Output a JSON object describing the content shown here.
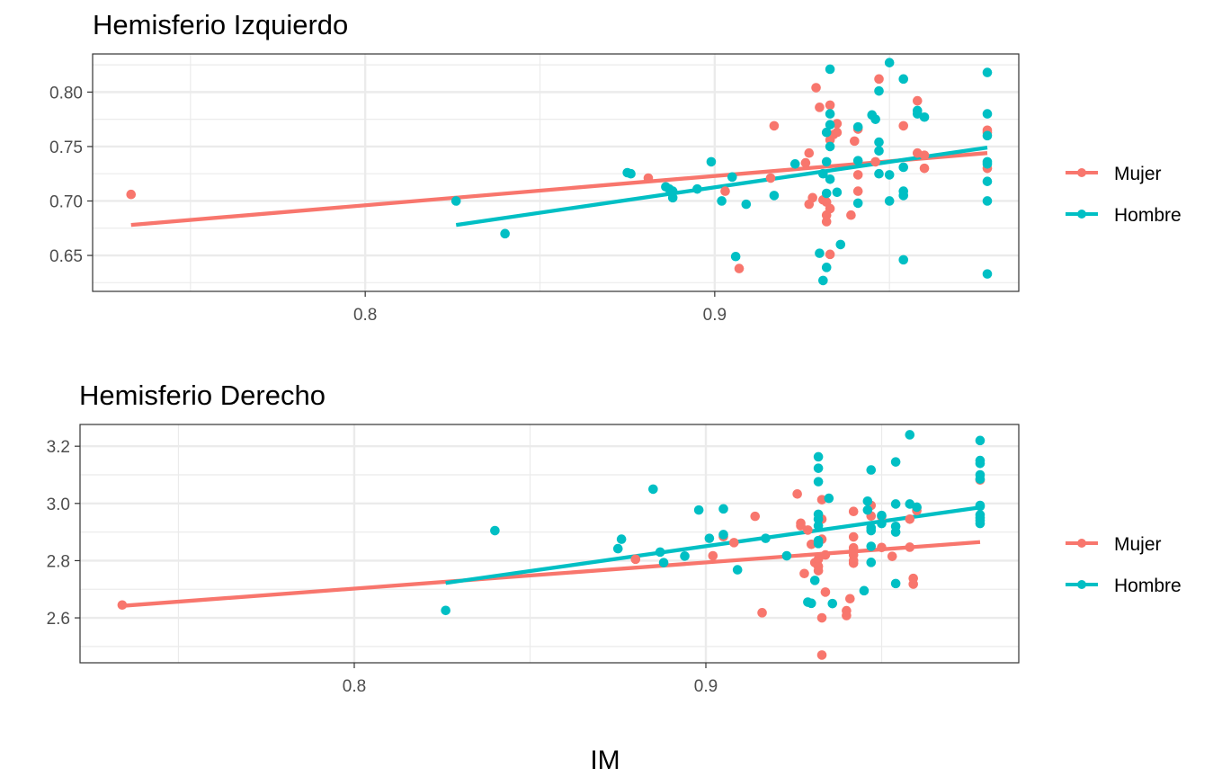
{
  "figure": {
    "xlabel": "IM"
  },
  "legend": {
    "items": [
      {
        "label": "Mujer",
        "color": "#F8766D"
      },
      {
        "label": "Hombre",
        "color": "#00BFC4"
      }
    ]
  },
  "chart_data": [
    {
      "type": "scatter",
      "title": "Hemisferio Izquierdo",
      "xlabel": "IM",
      "ylabel": "",
      "xlim": [
        0.722,
        0.987
      ],
      "ylim": [
        0.617,
        0.835
      ],
      "xticks": [
        "0.8",
        "0.9"
      ],
      "xtick_values": [
        0.8,
        0.9
      ],
      "yticks": [
        "0.65",
        "0.70",
        "0.75",
        "0.80"
      ],
      "ytick_values": [
        0.65,
        0.7,
        0.75,
        0.8
      ],
      "grid": true,
      "legend_position": "right",
      "series": [
        {
          "name": "Mujer",
          "color": "#F8766D",
          "points": [
            [
              0.733,
              0.706
            ],
            [
              0.881,
              0.721
            ],
            [
              0.903,
              0.709
            ],
            [
              0.907,
              0.638
            ],
            [
              0.916,
              0.721
            ],
            [
              0.917,
              0.769
            ],
            [
              0.926,
              0.735
            ],
            [
              0.927,
              0.744
            ],
            [
              0.927,
              0.697
            ],
            [
              0.928,
              0.703
            ],
            [
              0.929,
              0.804
            ],
            [
              0.93,
              0.786
            ],
            [
              0.931,
              0.701
            ],
            [
              0.932,
              0.699
            ],
            [
              0.932,
              0.681
            ],
            [
              0.932,
              0.687
            ],
            [
              0.933,
              0.693
            ],
            [
              0.933,
              0.788
            ],
            [
              0.933,
              0.651
            ],
            [
              0.933,
              0.756
            ],
            [
              0.934,
              0.761
            ],
            [
              0.935,
              0.771
            ],
            [
              0.935,
              0.763
            ],
            [
              0.939,
              0.687
            ],
            [
              0.94,
              0.755
            ],
            [
              0.941,
              0.709
            ],
            [
              0.941,
              0.724
            ],
            [
              0.941,
              0.766
            ],
            [
              0.946,
              0.736
            ],
            [
              0.947,
              0.812
            ],
            [
              0.954,
              0.769
            ],
            [
              0.958,
              0.792
            ],
            [
              0.958,
              0.744
            ],
            [
              0.96,
              0.73
            ],
            [
              0.96,
              0.742
            ],
            [
              0.978,
              0.765
            ],
            [
              0.978,
              0.763
            ],
            [
              0.978,
              0.73
            ]
          ]
        },
        {
          "name": "Hombre",
          "color": "#00BFC4",
          "points": [
            [
              0.826,
              0.7
            ],
            [
              0.84,
              0.67
            ],
            [
              0.875,
              0.726
            ],
            [
              0.876,
              0.725
            ],
            [
              0.886,
              0.713
            ],
            [
              0.887,
              0.711
            ],
            [
              0.888,
              0.703
            ],
            [
              0.888,
              0.709
            ],
            [
              0.895,
              0.711
            ],
            [
              0.899,
              0.736
            ],
            [
              0.902,
              0.7
            ],
            [
              0.905,
              0.722
            ],
            [
              0.906,
              0.649
            ],
            [
              0.909,
              0.697
            ],
            [
              0.917,
              0.705
            ],
            [
              0.923,
              0.734
            ],
            [
              0.93,
              0.652
            ],
            [
              0.931,
              0.627
            ],
            [
              0.931,
              0.725
            ],
            [
              0.932,
              0.707
            ],
            [
              0.932,
              0.736
            ],
            [
              0.932,
              0.763
            ],
            [
              0.932,
              0.639
            ],
            [
              0.933,
              0.821
            ],
            [
              0.933,
              0.78
            ],
            [
              0.933,
              0.77
            ],
            [
              0.933,
              0.75
            ],
            [
              0.933,
              0.72
            ],
            [
              0.935,
              0.708
            ],
            [
              0.936,
              0.66
            ],
            [
              0.941,
              0.768
            ],
            [
              0.941,
              0.737
            ],
            [
              0.941,
              0.698
            ],
            [
              0.945,
              0.779
            ],
            [
              0.946,
              0.775
            ],
            [
              0.947,
              0.801
            ],
            [
              0.947,
              0.754
            ],
            [
              0.947,
              0.746
            ],
            [
              0.947,
              0.725
            ],
            [
              0.95,
              0.827
            ],
            [
              0.95,
              0.724
            ],
            [
              0.95,
              0.7
            ],
            [
              0.954,
              0.812
            ],
            [
              0.954,
              0.731
            ],
            [
              0.954,
              0.709
            ],
            [
              0.954,
              0.705
            ],
            [
              0.954,
              0.646
            ],
            [
              0.958,
              0.783
            ],
            [
              0.958,
              0.78
            ],
            [
              0.96,
              0.777
            ],
            [
              0.978,
              0.818
            ],
            [
              0.978,
              0.78
            ],
            [
              0.978,
              0.76
            ],
            [
              0.978,
              0.736
            ],
            [
              0.978,
              0.734
            ],
            [
              0.978,
              0.718
            ],
            [
              0.978,
              0.7
            ],
            [
              0.978,
              0.633
            ]
          ]
        }
      ],
      "fit_lines": [
        {
          "name": "Mujer",
          "color": "#F8766D",
          "x": [
            0.733,
            0.978
          ],
          "y": [
            0.678,
            0.744
          ]
        },
        {
          "name": "Hombre",
          "color": "#00BFC4",
          "x": [
            0.826,
            0.978
          ],
          "y": [
            0.678,
            0.749
          ]
        }
      ]
    },
    {
      "type": "scatter",
      "title": "Hemisferio Derecho",
      "xlabel": "IM",
      "ylabel": "",
      "xlim": [
        0.722,
        0.989
      ],
      "ylim": [
        2.443,
        3.276
      ],
      "xticks": [
        "0.8",
        "0.9"
      ],
      "xtick_values": [
        0.8,
        0.9
      ],
      "yticks": [
        "2.6",
        "2.8",
        "3.0",
        "3.2"
      ],
      "ytick_values": [
        2.6,
        2.8,
        3.0,
        3.2
      ],
      "grid": true,
      "legend_position": "right",
      "series": [
        {
          "name": "Mujer",
          "color": "#F8766D",
          "points": [
            [
              0.734,
              2.645
            ],
            [
              0.88,
              2.805
            ],
            [
              0.902,
              2.817
            ],
            [
              0.905,
              2.884
            ],
            [
              0.908,
              2.863
            ],
            [
              0.914,
              2.955
            ],
            [
              0.916,
              2.618
            ],
            [
              0.926,
              3.033
            ],
            [
              0.927,
              2.931
            ],
            [
              0.927,
              2.922
            ],
            [
              0.928,
              2.755
            ],
            [
              0.929,
              2.907
            ],
            [
              0.93,
              2.857
            ],
            [
              0.931,
              2.793
            ],
            [
              0.932,
              2.805
            ],
            [
              0.932,
              2.78
            ],
            [
              0.932,
              2.765
            ],
            [
              0.933,
              3.013
            ],
            [
              0.933,
              2.945
            ],
            [
              0.933,
              2.875
            ],
            [
              0.933,
              2.6
            ],
            [
              0.934,
              2.82
            ],
            [
              0.934,
              2.69
            ],
            [
              0.933,
              2.47
            ],
            [
              0.94,
              2.625
            ],
            [
              0.94,
              2.608
            ],
            [
              0.941,
              2.667
            ],
            [
              0.942,
              2.883
            ],
            [
              0.942,
              2.845
            ],
            [
              0.942,
              2.835
            ],
            [
              0.942,
              2.82
            ],
            [
              0.942,
              2.8
            ],
            [
              0.942,
              2.791
            ],
            [
              0.942,
              2.972
            ],
            [
              0.947,
              2.993
            ],
            [
              0.947,
              2.956
            ],
            [
              0.95,
              2.954
            ],
            [
              0.95,
              2.846
            ],
            [
              0.953,
              2.815
            ],
            [
              0.958,
              2.945
            ],
            [
              0.958,
              2.847
            ],
            [
              0.959,
              2.738
            ],
            [
              0.959,
              2.718
            ],
            [
              0.96,
              2.985
            ],
            [
              0.96,
              2.975
            ],
            [
              0.978,
              3.082
            ]
          ]
        },
        {
          "name": "Hombre",
          "color": "#00BFC4",
          "points": [
            [
              0.826,
              2.626
            ],
            [
              0.84,
              2.905
            ],
            [
              0.875,
              2.842
            ],
            [
              0.876,
              2.875
            ],
            [
              0.885,
              3.05
            ],
            [
              0.887,
              2.83
            ],
            [
              0.888,
              2.793
            ],
            [
              0.894,
              2.816
            ],
            [
              0.898,
              2.977
            ],
            [
              0.901,
              2.878
            ],
            [
              0.905,
              2.981
            ],
            [
              0.905,
              2.891
            ],
            [
              0.909,
              2.768
            ],
            [
              0.917,
              2.878
            ],
            [
              0.923,
              2.817
            ],
            [
              0.929,
              2.655
            ],
            [
              0.93,
              2.651
            ],
            [
              0.931,
              2.731
            ],
            [
              0.932,
              3.163
            ],
            [
              0.932,
              3.123
            ],
            [
              0.932,
              3.076
            ],
            [
              0.932,
              2.962
            ],
            [
              0.932,
              2.945
            ],
            [
              0.932,
              2.922
            ],
            [
              0.932,
              2.87
            ],
            [
              0.932,
              2.86
            ],
            [
              0.935,
              3.018
            ],
            [
              0.936,
              2.65
            ],
            [
              0.945,
              2.695
            ],
            [
              0.946,
              3.008
            ],
            [
              0.946,
              2.977
            ],
            [
              0.947,
              2.915
            ],
            [
              0.947,
              2.905
            ],
            [
              0.947,
              2.85
            ],
            [
              0.947,
              3.117
            ],
            [
              0.947,
              2.794
            ],
            [
              0.95,
              2.958
            ],
            [
              0.95,
              2.93
            ],
            [
              0.954,
              3.145
            ],
            [
              0.954,
              2.998
            ],
            [
              0.954,
              2.92
            ],
            [
              0.954,
              2.9
            ],
            [
              0.954,
              2.72
            ],
            [
              0.958,
              3.24
            ],
            [
              0.958,
              2.998
            ],
            [
              0.96,
              2.987
            ],
            [
              0.978,
              3.22
            ],
            [
              0.978,
              3.15
            ],
            [
              0.978,
              3.14
            ],
            [
              0.978,
              3.1
            ],
            [
              0.978,
              3.085
            ],
            [
              0.978,
              2.993
            ],
            [
              0.978,
              2.99
            ],
            [
              0.978,
              2.96
            ],
            [
              0.978,
              2.95
            ],
            [
              0.978,
              2.94
            ],
            [
              0.978,
              2.93
            ]
          ]
        }
      ],
      "fit_lines": [
        {
          "name": "Mujer",
          "color": "#F8766D",
          "x": [
            0.734,
            0.978
          ],
          "y": [
            2.642,
            2.865
          ]
        },
        {
          "name": "Hombre",
          "color": "#00BFC4",
          "x": [
            0.826,
            0.978
          ],
          "y": [
            2.722,
            2.986
          ]
        }
      ]
    }
  ]
}
